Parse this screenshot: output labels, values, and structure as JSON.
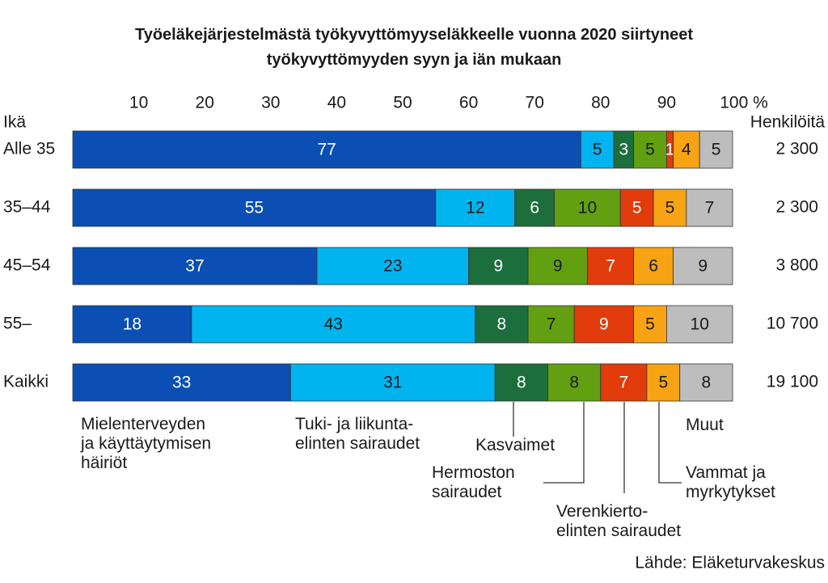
{
  "chart_data": {
    "type": "stacked_barh",
    "title": "Työeläkejärjestelmästä työkyvyttömyyseläkkeelle vuonna 2020 siirtyneet\ntyökyvyttömyyden syyn ja iän mukaan",
    "y_label": "Ikä",
    "categories": [
      "Alle 35",
      "35–44",
      "45–54",
      "55–",
      "Kaikki"
    ],
    "xlim": [
      0,
      100
    ],
    "xticks": [
      10,
      20,
      30,
      40,
      50,
      60,
      70,
      80,
      90,
      {
        "value": 100,
        "label": "100 %"
      }
    ],
    "series": [
      {
        "name": "Mielenterveyden\nja käyttäytymisen\nhäiriöt",
        "color": "#0b4fb4",
        "label_color": "#ffffff",
        "values": [
          77,
          55,
          37,
          18,
          33
        ]
      },
      {
        "name": "Tuki- ja liikunta-\nelinten sairaudet",
        "color": "#00b4f0",
        "label_color": "#1a1a1a",
        "values": [
          5,
          12,
          23,
          43,
          31
        ]
      },
      {
        "name": "Kasvaimet",
        "color": "#1c6e3d",
        "label_color": "#ffffff",
        "values": [
          3,
          6,
          9,
          8,
          8
        ]
      },
      {
        "name": "Hermoston\nsairaudet",
        "color": "#62a012",
        "label_color": "#1a1a1a",
        "values": [
          5,
          10,
          9,
          7,
          8
        ]
      },
      {
        "name": "Verenkierto-\nelinten sairaudet",
        "color": "#e23b0c",
        "label_color": "#ffffff",
        "values": [
          1,
          5,
          7,
          9,
          7
        ]
      },
      {
        "name": "Vammat ja\nmyrkytykset",
        "color": "#f7a313",
        "label_color": "#1a1a1a",
        "values": [
          4,
          5,
          6,
          5,
          5
        ]
      },
      {
        "name": "Muut",
        "color": "#bdbdbd",
        "label_color": "#1a1a1a",
        "values": [
          5,
          7,
          9,
          10,
          8
        ]
      }
    ],
    "totals": {
      "title": "Henkilöitä",
      "values": [
        2300,
        2300,
        3800,
        10700,
        19100
      ],
      "value_labels": [
        "2 300",
        "2 300",
        "3 800",
        "10 700",
        "19 100"
      ]
    },
    "source": "Lähde: Eläketurvakeskus"
  }
}
